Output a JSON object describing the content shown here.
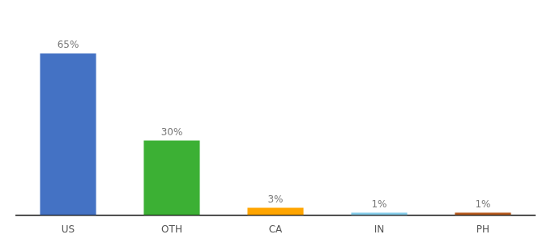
{
  "chart_data": {
    "type": "bar",
    "categories": [
      "US",
      "OTH",
      "CA",
      "IN",
      "PH"
    ],
    "values": [
      65,
      30,
      3,
      1,
      1
    ],
    "value_labels": [
      "65%",
      "30%",
      "3%",
      "1%",
      "1%"
    ],
    "colors": [
      "#4472C4",
      "#3CB034",
      "#FFA500",
      "#87CEEB",
      "#B85C20"
    ],
    "ylim": [
      0,
      80
    ],
    "grid": false,
    "data_labels": true,
    "tick_labels": "x"
  }
}
